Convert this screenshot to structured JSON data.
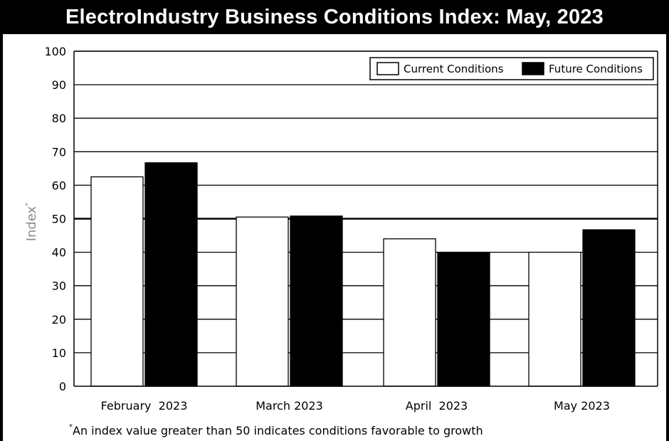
{
  "chart_data": {
    "type": "bar",
    "title": "ElectroIndustry Business Conditions Index: May, 2023",
    "ylabel": "Index",
    "ylabel_marker": "*",
    "xlabel": "",
    "ylim": [
      0,
      100
    ],
    "yticks": [
      0,
      10,
      20,
      30,
      40,
      50,
      60,
      70,
      80,
      90,
      100
    ],
    "grid": true,
    "reference_line": 50,
    "legend_position": "top-right",
    "categories": [
      "February  2023",
      "March 2023",
      "April  2023",
      "May 2023"
    ],
    "series": [
      {
        "name": "Current Conditions",
        "values": [
          62.5,
          50.5,
          44.0,
          40.0
        ],
        "color": "#ffffff"
      },
      {
        "name": "Future Conditions",
        "values": [
          66.7,
          50.8,
          40.0,
          46.7
        ],
        "color": "#000000"
      }
    ],
    "footnote_marker": "*",
    "footnote": "An index value greater than 50 indicates conditions favorable to growth"
  }
}
